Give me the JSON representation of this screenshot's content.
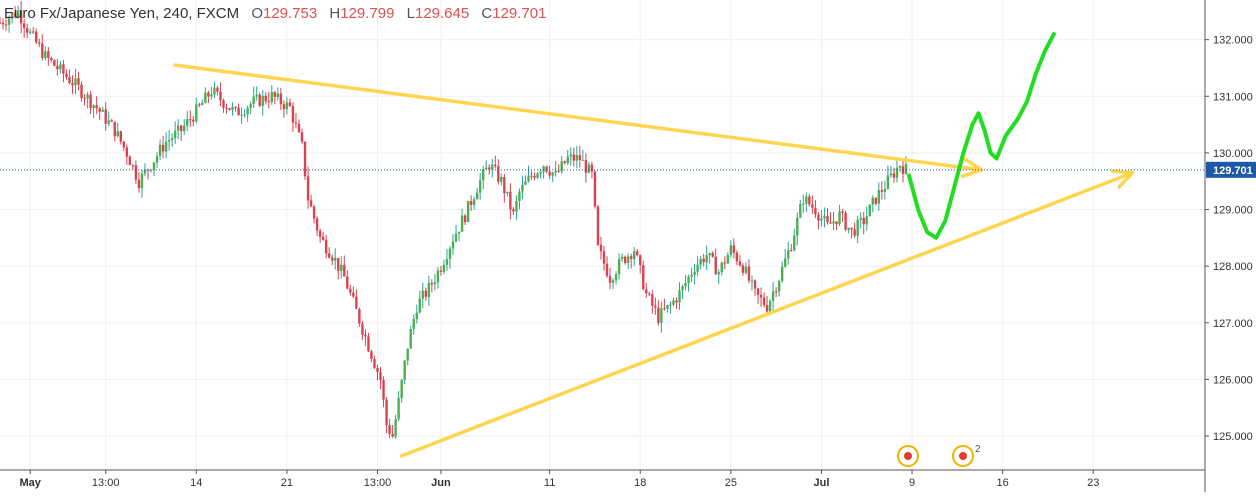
{
  "header": {
    "symbol": "Euro Fx/Japanese Yen, 240, FXCM",
    "open_label": "O",
    "open": "129.753",
    "high_label": "H",
    "high": "129.799",
    "low_label": "L",
    "low": "129.645",
    "close_label": "C",
    "close": "129.701"
  },
  "colors": {
    "up": "#26a69a",
    "up_fill": "#4caf50",
    "down": "#d9434f",
    "trendline": "#ffd54f",
    "drawing": "#22dd22",
    "price_tag": "#1e58a8",
    "grid": "#eef0f2"
  },
  "price_tag": "129.701",
  "event_badge_count": "2",
  "chart_data": {
    "type": "candlestick",
    "y_range": [
      124.4,
      132.7
    ],
    "y_ticks": [
      "125.000",
      "126.000",
      "127.000",
      "128.000",
      "129.000",
      "130.000",
      "131.000",
      "132.000"
    ],
    "x_ticks": [
      "May",
      "13:00",
      "14",
      "21",
      "13:00",
      "Jun",
      "11",
      "18",
      "25",
      "Jul",
      "9",
      "16",
      "23"
    ],
    "last_price": 129.701,
    "path_points": [
      [
        0,
        132.3
      ],
      [
        6,
        132.5
      ],
      [
        10,
        132.1
      ],
      [
        15,
        131.7
      ],
      [
        19,
        131.5
      ],
      [
        25,
        131.2
      ],
      [
        32,
        130.8
      ],
      [
        38,
        130.4
      ],
      [
        42,
        130.0
      ],
      [
        46,
        129.5
      ],
      [
        50,
        129.8
      ],
      [
        55,
        130.2
      ],
      [
        60,
        130.4
      ],
      [
        66,
        130.8
      ],
      [
        70,
        131.1
      ],
      [
        74,
        130.9
      ],
      [
        78,
        130.7
      ],
      [
        84,
        130.9
      ],
      [
        90,
        131.0
      ],
      [
        96,
        130.8
      ],
      [
        100,
        130.1
      ],
      [
        102,
        129.2
      ],
      [
        106,
        128.5
      ],
      [
        110,
        128.2
      ],
      [
        114,
        127.8
      ],
      [
        118,
        127.2
      ],
      [
        122,
        126.6
      ],
      [
        126,
        126.0
      ],
      [
        128,
        125.2
      ],
      [
        130,
        125.0
      ],
      [
        132,
        125.6
      ],
      [
        135,
        126.6
      ],
      [
        138,
        127.3
      ],
      [
        142,
        127.6
      ],
      [
        146,
        128.0
      ],
      [
        150,
        128.5
      ],
      [
        154,
        128.9
      ],
      [
        158,
        129.4
      ],
      [
        162,
        129.8
      ],
      [
        166,
        129.5
      ],
      [
        170,
        128.9
      ],
      [
        172,
        129.3
      ],
      [
        176,
        129.6
      ],
      [
        180,
        129.8
      ],
      [
        184,
        129.6
      ],
      [
        188,
        129.9
      ],
      [
        192,
        129.9
      ],
      [
        196,
        129.6
      ],
      [
        198,
        128.3
      ],
      [
        202,
        127.8
      ],
      [
        206,
        128.1
      ],
      [
        210,
        128.3
      ],
      [
        214,
        127.5
      ],
      [
        218,
        127.1
      ],
      [
        222,
        127.3
      ],
      [
        226,
        127.6
      ],
      [
        230,
        128.0
      ],
      [
        234,
        128.2
      ],
      [
        238,
        127.9
      ],
      [
        242,
        128.3
      ],
      [
        246,
        128.0
      ],
      [
        250,
        127.5
      ],
      [
        254,
        127.3
      ],
      [
        258,
        127.8
      ],
      [
        262,
        128.4
      ],
      [
        266,
        129.2
      ],
      [
        270,
        129.0
      ],
      [
        274,
        128.7
      ],
      [
        278,
        128.9
      ],
      [
        282,
        128.6
      ],
      [
        286,
        128.8
      ],
      [
        290,
        129.2
      ],
      [
        294,
        129.5
      ],
      [
        298,
        129.8
      ],
      [
        300,
        129.7
      ]
    ],
    "trendlines": [
      {
        "from": [
          58,
          131.55
        ],
        "to": [
          325,
          129.7
        ],
        "arrow": true
      },
      {
        "from": [
          133,
          124.65
        ],
        "to": [
          375,
          129.65
        ],
        "arrow": true
      }
    ],
    "annotation_path": [
      [
        301,
        129.6
      ],
      [
        304,
        129.0
      ],
      [
        307,
        128.6
      ],
      [
        310,
        128.5
      ],
      [
        313,
        128.8
      ],
      [
        316,
        129.4
      ],
      [
        319,
        130.0
      ],
      [
        322,
        130.5
      ],
      [
        324,
        130.7
      ],
      [
        326,
        130.4
      ],
      [
        328,
        130.0
      ],
      [
        330,
        129.9
      ],
      [
        333,
        130.3
      ],
      [
        337,
        130.6
      ],
      [
        340,
        130.9
      ],
      [
        343,
        131.4
      ],
      [
        346,
        131.8
      ],
      [
        349,
        132.1
      ]
    ]
  }
}
